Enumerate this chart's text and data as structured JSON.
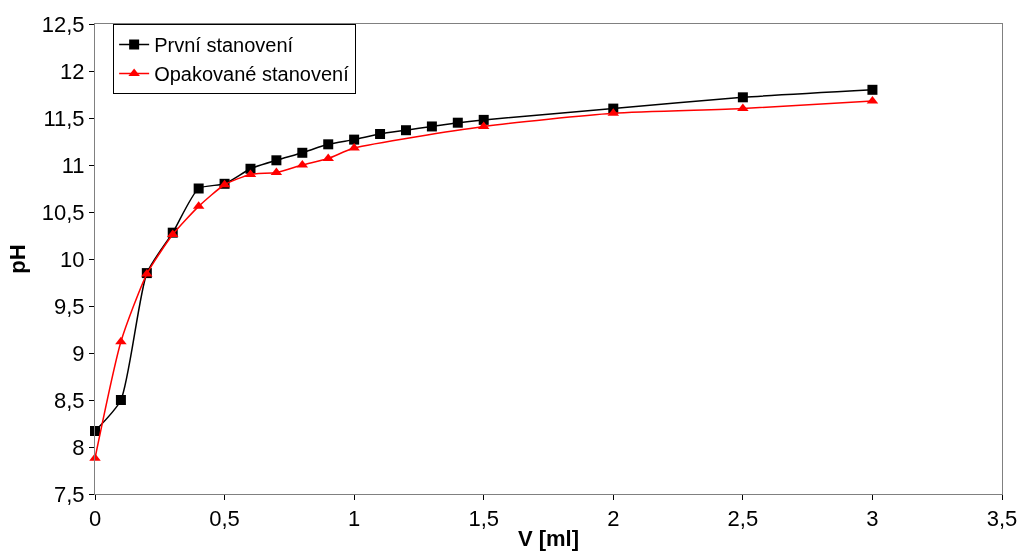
{
  "chart_data": {
    "type": "line",
    "xlabel": "V [ml]",
    "ylabel": "pH",
    "xlim": [
      0,
      3.5
    ],
    "xticks": [
      0,
      {
        "value": 0.5,
        "label": "0,5"
      },
      1,
      {
        "value": 1.5,
        "label": "1,5"
      },
      2,
      {
        "value": 2.5,
        "label": "2,5"
      },
      3,
      {
        "value": 3.5,
        "label": "3,5"
      }
    ],
    "ylim": [
      7.5,
      12.5
    ],
    "yticks": [
      {
        "value": 7.5,
        "label": "7,5"
      },
      8,
      {
        "value": 8.5,
        "label": "8,5"
      },
      9,
      {
        "value": 9.5,
        "label": "9,5"
      },
      10,
      {
        "value": 10.5,
        "label": "10,5"
      },
      11,
      {
        "value": 11.5,
        "label": "11,5"
      },
      12,
      {
        "value": 12.5,
        "label": "12,5"
      }
    ],
    "legend": "top left",
    "series": [
      {
        "name": "První stanovení",
        "color": "#000000",
        "marker": "square",
        "x": [
          0,
          0.1,
          0.2,
          0.3,
          0.4,
          0.5,
          0.6,
          0.7,
          0.8,
          0.9,
          1.0,
          1.1,
          1.2,
          1.3,
          1.4,
          1.5,
          2,
          2.5,
          3
        ],
        "values": [
          8.17,
          8.5,
          9.85,
          10.28,
          10.75,
          10.8,
          10.96,
          11.05,
          11.13,
          11.22,
          11.27,
          11.33,
          11.37,
          11.41,
          11.45,
          11.48,
          11.6,
          11.72,
          11.8
        ]
      },
      {
        "name": "Opakované stanovení",
        "color": "#ff0000",
        "marker": "triangle",
        "x": [
          0,
          0.1,
          0.2,
          0.3,
          0.4,
          0.5,
          0.6,
          0.7,
          0.8,
          0.9,
          1.0,
          1.5,
          2,
          2.5,
          3
        ],
        "values": [
          7.88,
          9.12,
          9.84,
          10.26,
          10.56,
          10.79,
          10.9,
          10.92,
          11.0,
          11.07,
          11.18,
          11.41,
          11.55,
          11.6,
          11.68
        ]
      }
    ]
  }
}
